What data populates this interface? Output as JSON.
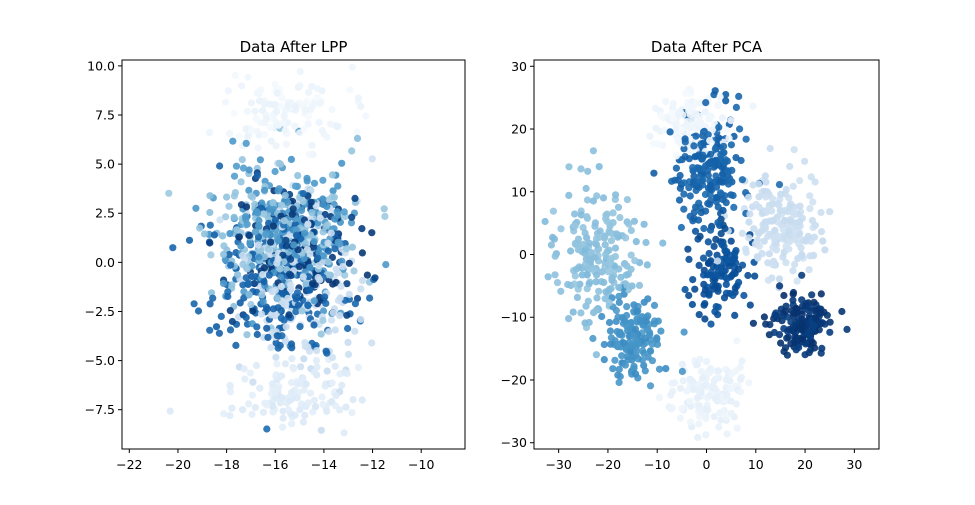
{
  "chart_data": [
    {
      "type": "scatter",
      "title": "Data After LPP",
      "xlabel": "",
      "ylabel": "",
      "xlim": [
        -22.3,
        -8.2
      ],
      "ylim": [
        -9.5,
        10.3
      ],
      "xticks": [
        -22,
        -20,
        -18,
        -16,
        -14,
        -12,
        -10
      ],
      "yticks": [
        -7.5,
        -5.0,
        -2.5,
        0.0,
        2.5,
        5.0,
        7.5,
        10.0
      ],
      "xtick_labels": [
        "−22",
        "−20",
        "−18",
        "−16",
        "−14",
        "−12",
        "−10"
      ],
      "ytick_labels": [
        "−7.5",
        "−5.0",
        "−2.5",
        "0.0",
        "2.5",
        "5.0",
        "7.5",
        "10.0"
      ],
      "grid": false,
      "legend": "none",
      "colormap": "Blues",
      "series": [
        {
          "center": [
            -15.6,
            7.6
          ],
          "spread": [
            1.7,
            1.3
          ],
          "count": 120,
          "shade": 0.04
        },
        {
          "center": [
            -15.5,
            -6.6
          ],
          "spread": [
            1.8,
            1.2
          ],
          "count": 120,
          "shade": 0.12
        },
        {
          "center": [
            -14.8,
            -1.0
          ],
          "spread": [
            1.5,
            3.0
          ],
          "count": 200,
          "shade": 0.22
        },
        {
          "center": [
            -16.0,
            1.0
          ],
          "spread": [
            1.9,
            2.5
          ],
          "count": 200,
          "shade": 0.4
        },
        {
          "center": [
            -15.4,
            1.6
          ],
          "spread": [
            1.8,
            2.4
          ],
          "count": 220,
          "shade": 0.6
        },
        {
          "center": [
            -16.0,
            -1.0
          ],
          "spread": [
            1.9,
            2.5
          ],
          "count": 200,
          "shade": 0.8
        },
        {
          "center": [
            -15.2,
            0.5
          ],
          "spread": [
            1.7,
            2.5
          ],
          "count": 160,
          "shade": 0.95
        }
      ]
    },
    {
      "type": "scatter",
      "title": "Data After PCA",
      "xlabel": "",
      "ylabel": "",
      "xlim": [
        -35,
        35
      ],
      "ylim": [
        -31,
        31
      ],
      "xticks": [
        -30,
        -20,
        -10,
        0,
        10,
        20,
        30
      ],
      "yticks": [
        -30,
        -20,
        -10,
        0,
        10,
        20,
        30
      ],
      "xtick_labels": [
        "−30",
        "−20",
        "−10",
        "0",
        "10",
        "20",
        "30"
      ],
      "ytick_labels": [
        "−30",
        "−20",
        "−10",
        "0",
        "10",
        "20",
        "30"
      ],
      "grid": false,
      "legend": "none",
      "colormap": "Blues",
      "series": [
        {
          "center": [
            -3.0,
            21.0
          ],
          "spread": [
            5.0,
            3.5
          ],
          "count": 120,
          "shade": 0.04
        },
        {
          "center": [
            0.0,
            -22.0
          ],
          "spread": [
            5.0,
            4.0
          ],
          "count": 130,
          "shade": 0.07
        },
        {
          "center": [
            15.0,
            5.0
          ],
          "spread": [
            5.5,
            5.5
          ],
          "count": 180,
          "shade": 0.22
        },
        {
          "center": [
            -22.0,
            0.0
          ],
          "spread": [
            6.0,
            7.0
          ],
          "count": 200,
          "shade": 0.42
        },
        {
          "center": [
            -15.0,
            -13.0
          ],
          "spread": [
            4.0,
            4.0
          ],
          "count": 150,
          "shade": 0.62
        },
        {
          "center": [
            0.0,
            14.0
          ],
          "spread": [
            5.0,
            6.0
          ],
          "count": 200,
          "shade": 0.8
        },
        {
          "center": [
            19.0,
            -11.0
          ],
          "spread": [
            4.5,
            3.0
          ],
          "count": 150,
          "shade": 0.97
        },
        {
          "center": [
            3.0,
            -2.0
          ],
          "spread": [
            4.5,
            5.5
          ],
          "count": 120,
          "shade": 0.88
        }
      ]
    }
  ]
}
